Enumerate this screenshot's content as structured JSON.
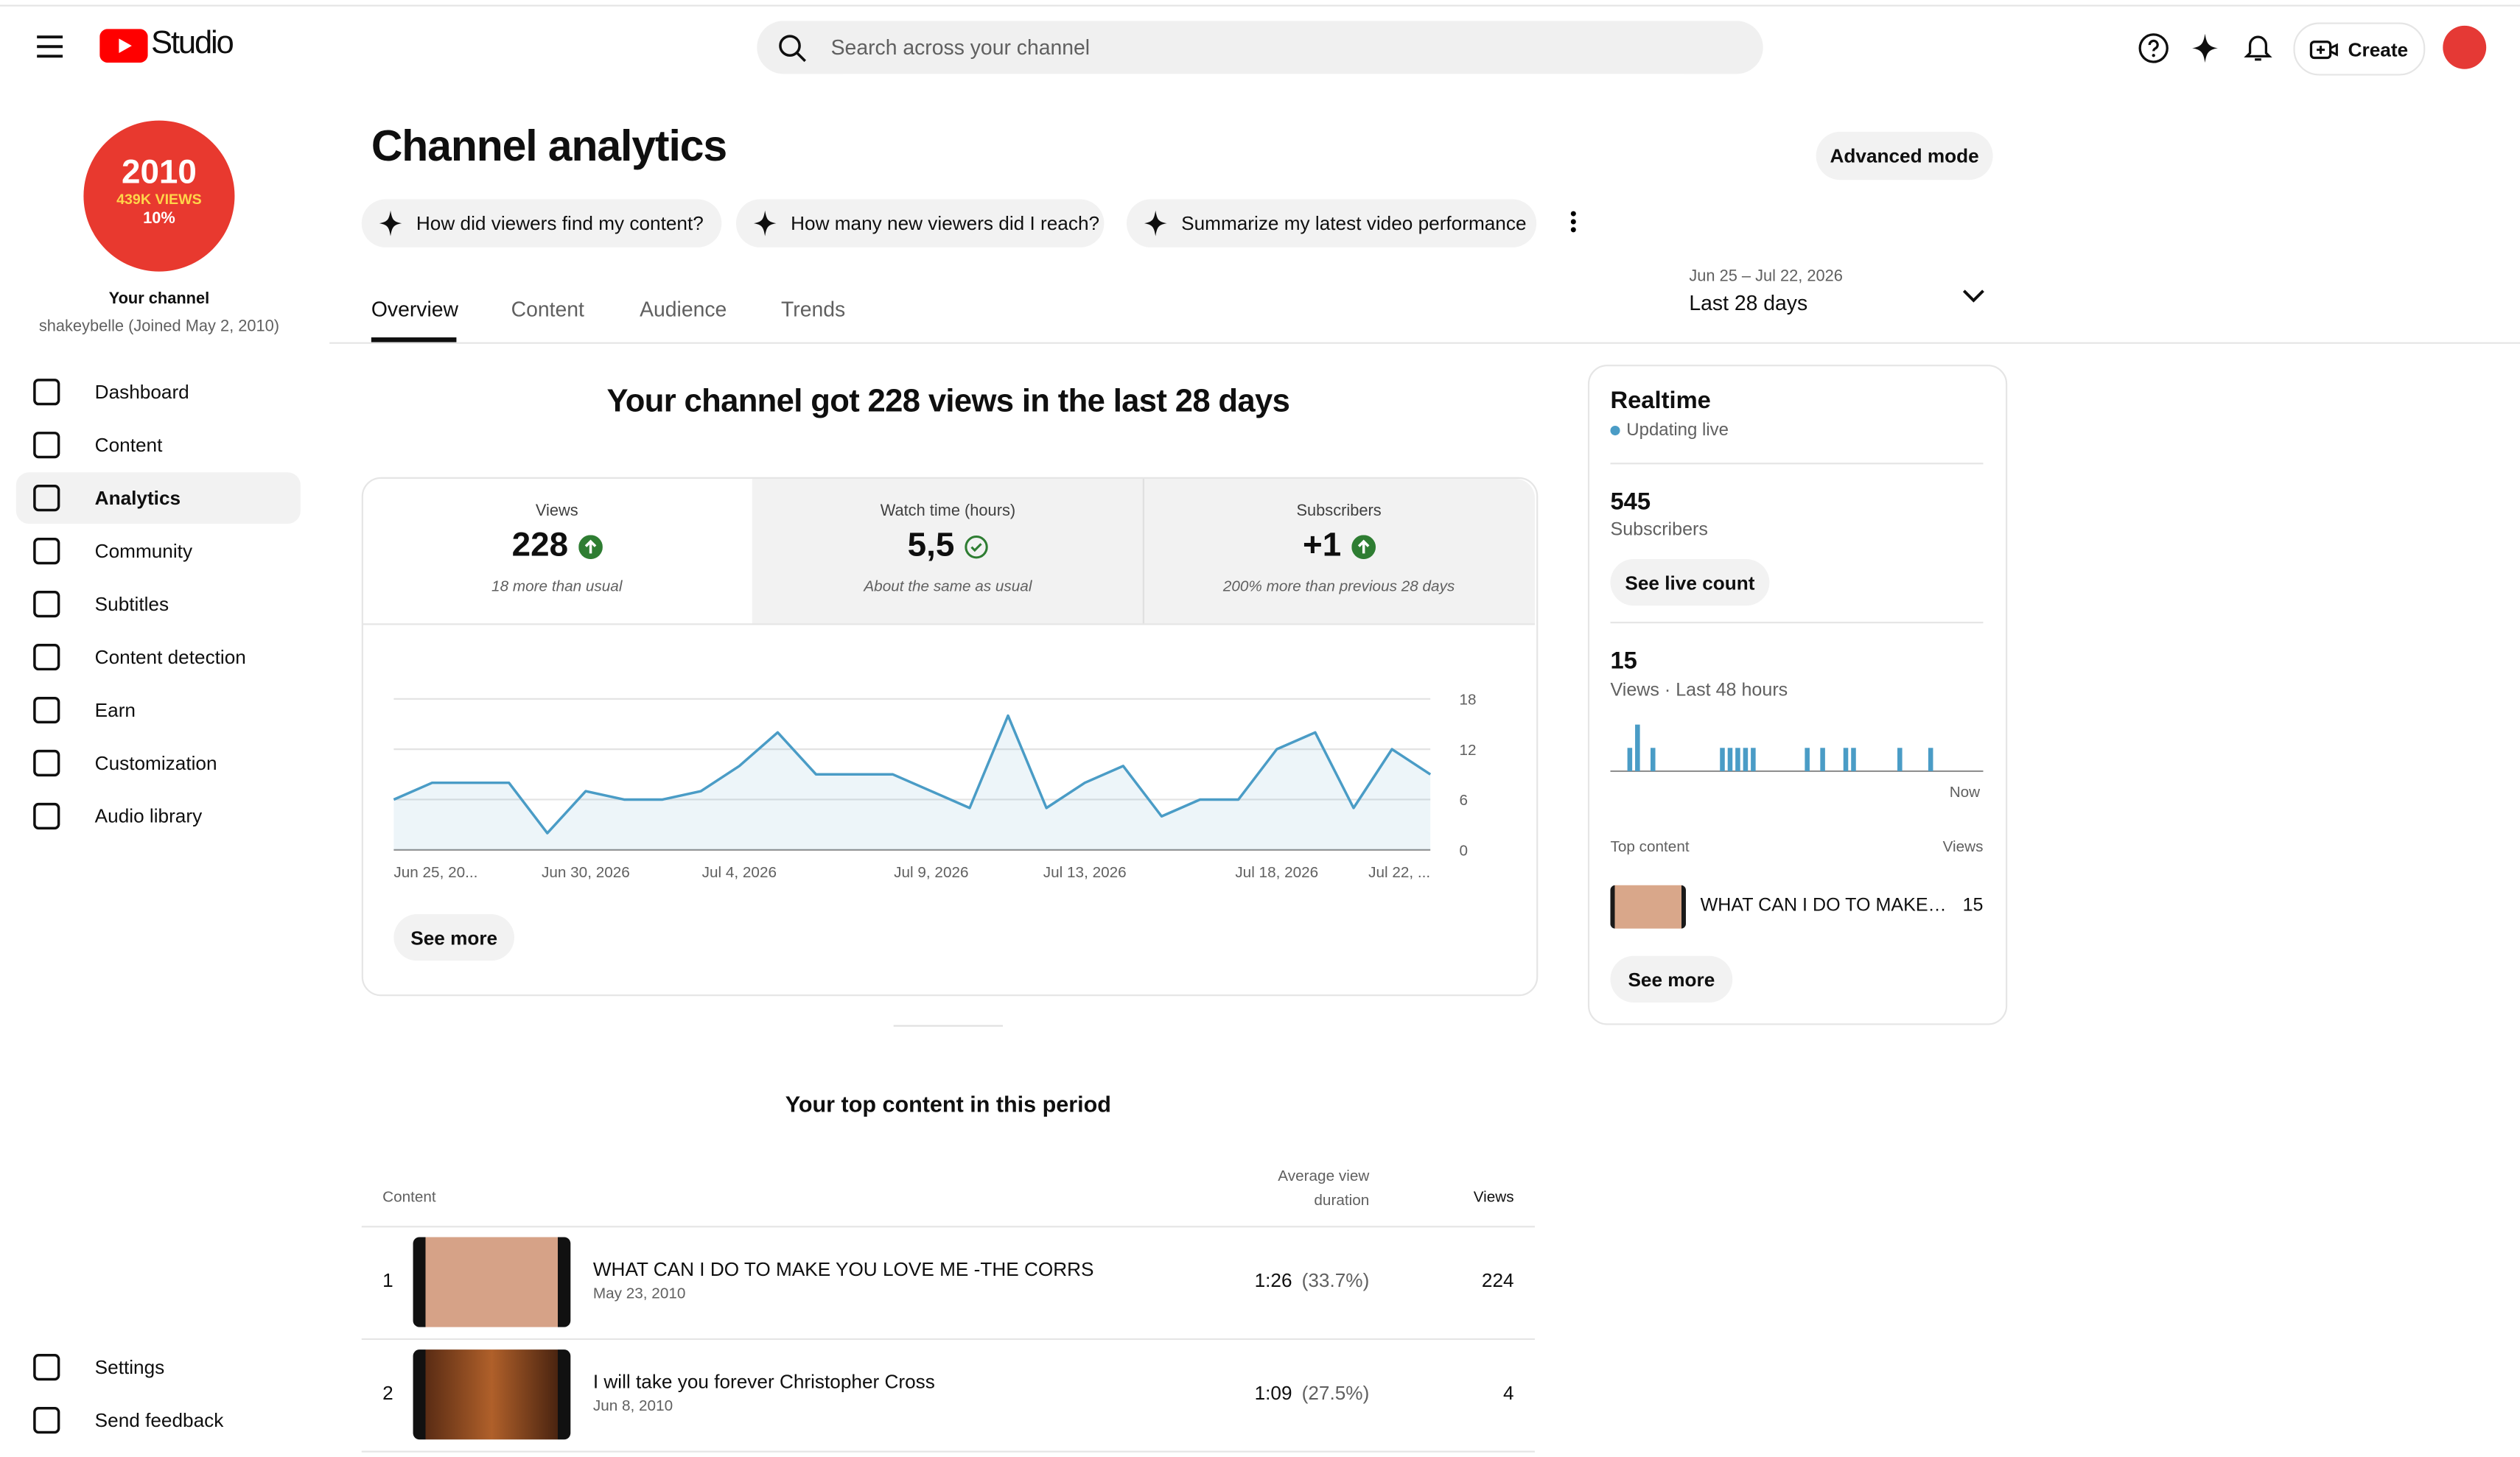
{
  "header": {
    "logo": "Studio",
    "search_placeholder": "Search across your channel",
    "create": "Create"
  },
  "sidebar": {
    "avatar": [
      "2010",
      "439K VIEWS",
      "10%"
    ],
    "channel_label": "Your channel",
    "channel_sub": "shakeybelle (Joined May 2, 2010)",
    "nav": [
      "Dashboard",
      "Content",
      "Analytics",
      "Community",
      "Subtitles",
      "Content detection",
      "Earn",
      "Customization",
      "Audio library"
    ],
    "footer": [
      "Settings",
      "Send feedback"
    ]
  },
  "page": {
    "title": "Channel analytics",
    "advanced": "Advanced mode",
    "prompts": [
      "How did viewers find my content?",
      "How many new viewers did I reach?",
      "Summarize my latest video performance"
    ],
    "tabs": [
      "Overview",
      "Content",
      "Audience",
      "Trends"
    ],
    "date_range": "Jun 25 – Jul 22, 2026",
    "period": "Last 28 days"
  },
  "overview": {
    "headline": "Your channel got 228 views in the last 28 days",
    "metrics": [
      {
        "label": "Views",
        "value": 228,
        "note": "18 more than usual"
      },
      {
        "label": "Watch time (hours)",
        "value": "5,5",
        "note": "About the same as usual"
      },
      {
        "label": "Subscribers",
        "value": "+1",
        "note": "200% more than previous 28 days"
      }
    ],
    "see_more": "See more"
  },
  "chart_data": [
    {
      "type": "line",
      "categories": [
        "Jun 25, 20...",
        null,
        null,
        null,
        null,
        "Jun 30, 2026",
        null,
        null,
        null,
        "Jul 4, 2026",
        null,
        null,
        null,
        null,
        "Jul 9, 2026",
        null,
        null,
        null,
        "Jul 13, 2026",
        null,
        null,
        null,
        null,
        "Jul 18, 2026",
        null,
        null,
        null,
        "Jul 22, ..."
      ],
      "values": [
        6,
        8,
        8,
        8,
        2,
        7,
        6,
        6,
        7,
        10,
        14,
        9,
        9,
        9,
        7,
        5,
        16,
        5,
        8,
        10,
        4,
        6,
        6,
        12,
        14,
        5,
        12,
        9
      ],
      "color": "#4a9cc6",
      "ylim": [
        0,
        18
      ],
      "yticks": [
        0,
        6,
        12,
        18
      ],
      "grid": true
    },
    {
      "type": "bar",
      "values": [
        0,
        0,
        1,
        2,
        0,
        1,
        0,
        0,
        0,
        0,
        0,
        0,
        0,
        0,
        1,
        1,
        1,
        1,
        1,
        0,
        0,
        0,
        0,
        0,
        0,
        1,
        0,
        1,
        0,
        0,
        1,
        1,
        0,
        0,
        0,
        0,
        0,
        1,
        0,
        0,
        0,
        1,
        0,
        0,
        0,
        0,
        0,
        0
      ],
      "color": "#4a9cc6"
    }
  ],
  "realtime": {
    "title": "Realtime",
    "status": "Updating live",
    "subscribers": 545,
    "subscribers_label": "Subscribers",
    "live_button": "See live count",
    "views": 15,
    "views_label": "Views · Last 48 hours",
    "now": "Now",
    "top_content_label": "Top content",
    "views_col": "Views",
    "top_item": {
      "title": "WHAT CAN I DO TO MAKE…",
      "views": 15
    },
    "see_more": "See more"
  },
  "top_content": {
    "title": "Your top content in this period",
    "columns": {
      "content": "Content",
      "duration": "Average view duration",
      "views": "Views"
    },
    "rows": [
      {
        "rank": 1,
        "title": "WHAT CAN I DO TO MAKE YOU LOVE ME -THE CORRS",
        "date": "May 23, 2010",
        "duration": "1:26",
        "percent": "(33.7%)",
        "views": 224
      },
      {
        "rank": 2,
        "title": "I will take you forever Christopher Cross",
        "date": "Jun 8, 2010",
        "duration": "1:09",
        "percent": "(27.5%)",
        "views": 4
      }
    ]
  }
}
